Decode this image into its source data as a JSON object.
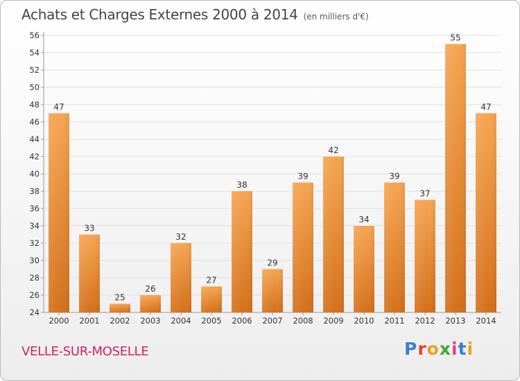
{
  "header": {
    "title": "Achats et Charges Externes 2000 à 2014",
    "unit": "(en milliers d'€)"
  },
  "footer": {
    "commune": "VELLE-SUR-MOSELLE",
    "logo": {
      "letters": [
        "P",
        "r",
        "o",
        "x",
        "i",
        "t",
        "i"
      ],
      "colors": [
        "#3a7fd0",
        "#e8442a",
        "#f0a020",
        "#3aaa35",
        "#e83c8c",
        "#3a7fd0",
        "#f0a020"
      ]
    }
  },
  "chart_data": {
    "type": "bar",
    "categories": [
      "2000",
      "2001",
      "2002",
      "2003",
      "2004",
      "2005",
      "2006",
      "2007",
      "2008",
      "2009",
      "2010",
      "2011",
      "2012",
      "2013",
      "2014"
    ],
    "values": [
      47,
      33,
      25,
      26,
      32,
      27,
      38,
      29,
      39,
      42,
      34,
      39,
      37,
      55,
      47
    ],
    "ylim": [
      24,
      56
    ],
    "yticks": [
      24,
      26,
      28,
      30,
      32,
      34,
      36,
      38,
      40,
      42,
      44,
      46,
      48,
      50,
      52,
      54,
      56
    ],
    "grid": true,
    "bar_color_top": "#f5a552",
    "bar_color_bottom": "#d4701a"
  }
}
